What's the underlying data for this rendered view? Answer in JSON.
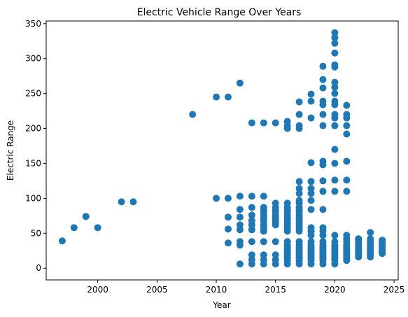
{
  "chart_data": {
    "type": "scatter",
    "title": "Electric Vehicle Range Over Years",
    "xlabel": "Year",
    "ylabel": "Electric Range",
    "xlim": [
      1995.65,
      2025.35
    ],
    "ylim": [
      -16.8,
      353.8
    ],
    "x_ticks": [
      2000,
      2005,
      2010,
      2015,
      2020,
      2025
    ],
    "y_ticks": [
      0,
      50,
      100,
      150,
      200,
      250,
      300,
      350
    ],
    "grid": false,
    "marker_color": "#1f77b4",
    "points": [
      {
        "x": 1997,
        "y": 39
      },
      {
        "x": 1998,
        "y": 58
      },
      {
        "x": 1999,
        "y": 74
      },
      {
        "x": 2000,
        "y": 58
      },
      {
        "x": 2002,
        "y": 95
      },
      {
        "x": 2003,
        "y": 95
      },
      {
        "x": 2008,
        "y": 220
      },
      {
        "x": 2010,
        "y": 100
      },
      {
        "x": 2010,
        "y": 245
      },
      {
        "x": 2011,
        "y": 36
      },
      {
        "x": 2011,
        "y": 56
      },
      {
        "x": 2011,
        "y": 73
      },
      {
        "x": 2011,
        "y": 100
      },
      {
        "x": 2011,
        "y": 245
      },
      {
        "x": 2012,
        "y": 6
      },
      {
        "x": 2012,
        "y": 33
      },
      {
        "x": 2012,
        "y": 38
      },
      {
        "x": 2012,
        "y": 55
      },
      {
        "x": 2012,
        "y": 62
      },
      {
        "x": 2012,
        "y": 73
      },
      {
        "x": 2012,
        "y": 84
      },
      {
        "x": 2012,
        "y": 103
      },
      {
        "x": 2012,
        "y": 265
      },
      {
        "x": 2013,
        "y": 6
      },
      {
        "x": 2013,
        "y": 12
      },
      {
        "x": 2013,
        "y": 19
      },
      {
        "x": 2013,
        "y": 38
      },
      {
        "x": 2013,
        "y": 55
      },
      {
        "x": 2013,
        "y": 62
      },
      {
        "x": 2013,
        "y": 68
      },
      {
        "x": 2013,
        "y": 76
      },
      {
        "x": 2013,
        "y": 87
      },
      {
        "x": 2013,
        "y": 103
      },
      {
        "x": 2013,
        "y": 208
      },
      {
        "x": 2014,
        "y": 6
      },
      {
        "x": 2014,
        "y": 12
      },
      {
        "x": 2014,
        "y": 19
      },
      {
        "x": 2014,
        "y": 38
      },
      {
        "x": 2014,
        "y": 53
      },
      {
        "x": 2014,
        "y": 58
      },
      {
        "x": 2014,
        "y": 62
      },
      {
        "x": 2014,
        "y": 68
      },
      {
        "x": 2014,
        "y": 72
      },
      {
        "x": 2014,
        "y": 76
      },
      {
        "x": 2014,
        "y": 81
      },
      {
        "x": 2014,
        "y": 84
      },
      {
        "x": 2014,
        "y": 87
      },
      {
        "x": 2014,
        "y": 103
      },
      {
        "x": 2014,
        "y": 208
      },
      {
        "x": 2015,
        "y": 6
      },
      {
        "x": 2015,
        "y": 12
      },
      {
        "x": 2015,
        "y": 19
      },
      {
        "x": 2015,
        "y": 38
      },
      {
        "x": 2015,
        "y": 62
      },
      {
        "x": 2015,
        "y": 66
      },
      {
        "x": 2015,
        "y": 70
      },
      {
        "x": 2015,
        "y": 72
      },
      {
        "x": 2015,
        "y": 76
      },
      {
        "x": 2015,
        "y": 81
      },
      {
        "x": 2015,
        "y": 84
      },
      {
        "x": 2015,
        "y": 87
      },
      {
        "x": 2015,
        "y": 93
      },
      {
        "x": 2015,
        "y": 208
      },
      {
        "x": 2016,
        "y": 6
      },
      {
        "x": 2016,
        "y": 11
      },
      {
        "x": 2016,
        "y": 14
      },
      {
        "x": 2016,
        "y": 16
      },
      {
        "x": 2016,
        "y": 19
      },
      {
        "x": 2016,
        "y": 22
      },
      {
        "x": 2016,
        "y": 25
      },
      {
        "x": 2016,
        "y": 27
      },
      {
        "x": 2016,
        "y": 30
      },
      {
        "x": 2016,
        "y": 33
      },
      {
        "x": 2016,
        "y": 38
      },
      {
        "x": 2016,
        "y": 53
      },
      {
        "x": 2016,
        "y": 58
      },
      {
        "x": 2016,
        "y": 62
      },
      {
        "x": 2016,
        "y": 66
      },
      {
        "x": 2016,
        "y": 70
      },
      {
        "x": 2016,
        "y": 72
      },
      {
        "x": 2016,
        "y": 76
      },
      {
        "x": 2016,
        "y": 81
      },
      {
        "x": 2016,
        "y": 84
      },
      {
        "x": 2016,
        "y": 87
      },
      {
        "x": 2016,
        "y": 93
      },
      {
        "x": 2016,
        "y": 200
      },
      {
        "x": 2016,
        "y": 204
      },
      {
        "x": 2016,
        "y": 210
      },
      {
        "x": 2017,
        "y": 6
      },
      {
        "x": 2017,
        "y": 11
      },
      {
        "x": 2017,
        "y": 14
      },
      {
        "x": 2017,
        "y": 16
      },
      {
        "x": 2017,
        "y": 19
      },
      {
        "x": 2017,
        "y": 22
      },
      {
        "x": 2017,
        "y": 25
      },
      {
        "x": 2017,
        "y": 27
      },
      {
        "x": 2017,
        "y": 30
      },
      {
        "x": 2017,
        "y": 33
      },
      {
        "x": 2017,
        "y": 38
      },
      {
        "x": 2017,
        "y": 53
      },
      {
        "x": 2017,
        "y": 58
      },
      {
        "x": 2017,
        "y": 62
      },
      {
        "x": 2017,
        "y": 66
      },
      {
        "x": 2017,
        "y": 70
      },
      {
        "x": 2017,
        "y": 72
      },
      {
        "x": 2017,
        "y": 76
      },
      {
        "x": 2017,
        "y": 81
      },
      {
        "x": 2017,
        "y": 84
      },
      {
        "x": 2017,
        "y": 87
      },
      {
        "x": 2017,
        "y": 93
      },
      {
        "x": 2017,
        "y": 97
      },
      {
        "x": 2017,
        "y": 107
      },
      {
        "x": 2017,
        "y": 114
      },
      {
        "x": 2017,
        "y": 124
      },
      {
        "x": 2017,
        "y": 200
      },
      {
        "x": 2017,
        "y": 204
      },
      {
        "x": 2017,
        "y": 220
      },
      {
        "x": 2017,
        "y": 238
      },
      {
        "x": 2018,
        "y": 6
      },
      {
        "x": 2018,
        "y": 11
      },
      {
        "x": 2018,
        "y": 14
      },
      {
        "x": 2018,
        "y": 16
      },
      {
        "x": 2018,
        "y": 19
      },
      {
        "x": 2018,
        "y": 22
      },
      {
        "x": 2018,
        "y": 25
      },
      {
        "x": 2018,
        "y": 27
      },
      {
        "x": 2018,
        "y": 30
      },
      {
        "x": 2018,
        "y": 33
      },
      {
        "x": 2018,
        "y": 38
      },
      {
        "x": 2018,
        "y": 47
      },
      {
        "x": 2018,
        "y": 53
      },
      {
        "x": 2018,
        "y": 58
      },
      {
        "x": 2018,
        "y": 84
      },
      {
        "x": 2018,
        "y": 97
      },
      {
        "x": 2018,
        "y": 107
      },
      {
        "x": 2018,
        "y": 114
      },
      {
        "x": 2018,
        "y": 124
      },
      {
        "x": 2018,
        "y": 151
      },
      {
        "x": 2018,
        "y": 215
      },
      {
        "x": 2018,
        "y": 239
      },
      {
        "x": 2018,
        "y": 249
      },
      {
        "x": 2019,
        "y": 6
      },
      {
        "x": 2019,
        "y": 11
      },
      {
        "x": 2019,
        "y": 14
      },
      {
        "x": 2019,
        "y": 16
      },
      {
        "x": 2019,
        "y": 19
      },
      {
        "x": 2019,
        "y": 22
      },
      {
        "x": 2019,
        "y": 25
      },
      {
        "x": 2019,
        "y": 27
      },
      {
        "x": 2019,
        "y": 30
      },
      {
        "x": 2019,
        "y": 33
      },
      {
        "x": 2019,
        "y": 38
      },
      {
        "x": 2019,
        "y": 47
      },
      {
        "x": 2019,
        "y": 53
      },
      {
        "x": 2019,
        "y": 58
      },
      {
        "x": 2019,
        "y": 84
      },
      {
        "x": 2019,
        "y": 110
      },
      {
        "x": 2019,
        "y": 125
      },
      {
        "x": 2019,
        "y": 148
      },
      {
        "x": 2019,
        "y": 153
      },
      {
        "x": 2019,
        "y": 204
      },
      {
        "x": 2019,
        "y": 220
      },
      {
        "x": 2019,
        "y": 234
      },
      {
        "x": 2019,
        "y": 239
      },
      {
        "x": 2019,
        "y": 258
      },
      {
        "x": 2019,
        "y": 270
      },
      {
        "x": 2019,
        "y": 289
      },
      {
        "x": 2020,
        "y": 6
      },
      {
        "x": 2020,
        "y": 11
      },
      {
        "x": 2020,
        "y": 14
      },
      {
        "x": 2020,
        "y": 16
      },
      {
        "x": 2020,
        "y": 19
      },
      {
        "x": 2020,
        "y": 22
      },
      {
        "x": 2020,
        "y": 25
      },
      {
        "x": 2020,
        "y": 27
      },
      {
        "x": 2020,
        "y": 30
      },
      {
        "x": 2020,
        "y": 33
      },
      {
        "x": 2020,
        "y": 38
      },
      {
        "x": 2020,
        "y": 47
      },
      {
        "x": 2020,
        "y": 110
      },
      {
        "x": 2020,
        "y": 126
      },
      {
        "x": 2020,
        "y": 150
      },
      {
        "x": 2020,
        "y": 170
      },
      {
        "x": 2020,
        "y": 204
      },
      {
        "x": 2020,
        "y": 215
      },
      {
        "x": 2020,
        "y": 220
      },
      {
        "x": 2020,
        "y": 234
      },
      {
        "x": 2020,
        "y": 239
      },
      {
        "x": 2020,
        "y": 250
      },
      {
        "x": 2020,
        "y": 259
      },
      {
        "x": 2020,
        "y": 266
      },
      {
        "x": 2020,
        "y": 288
      },
      {
        "x": 2020,
        "y": 291
      },
      {
        "x": 2020,
        "y": 308
      },
      {
        "x": 2020,
        "y": 322
      },
      {
        "x": 2020,
        "y": 330
      },
      {
        "x": 2020,
        "y": 337
      },
      {
        "x": 2021,
        "y": 11
      },
      {
        "x": 2021,
        "y": 14
      },
      {
        "x": 2021,
        "y": 16
      },
      {
        "x": 2021,
        "y": 19
      },
      {
        "x": 2021,
        "y": 22
      },
      {
        "x": 2021,
        "y": 25
      },
      {
        "x": 2021,
        "y": 27
      },
      {
        "x": 2021,
        "y": 30
      },
      {
        "x": 2021,
        "y": 33
      },
      {
        "x": 2021,
        "y": 38
      },
      {
        "x": 2021,
        "y": 42
      },
      {
        "x": 2021,
        "y": 47
      },
      {
        "x": 2021,
        "y": 110
      },
      {
        "x": 2021,
        "y": 126
      },
      {
        "x": 2021,
        "y": 153
      },
      {
        "x": 2021,
        "y": 192
      },
      {
        "x": 2021,
        "y": 204
      },
      {
        "x": 2021,
        "y": 215
      },
      {
        "x": 2021,
        "y": 220
      },
      {
        "x": 2021,
        "y": 233
      },
      {
        "x": 2022,
        "y": 16
      },
      {
        "x": 2022,
        "y": 19
      },
      {
        "x": 2022,
        "y": 21
      },
      {
        "x": 2022,
        "y": 23
      },
      {
        "x": 2022,
        "y": 25
      },
      {
        "x": 2022,
        "y": 27
      },
      {
        "x": 2022,
        "y": 30
      },
      {
        "x": 2022,
        "y": 33
      },
      {
        "x": 2022,
        "y": 35
      },
      {
        "x": 2022,
        "y": 38
      },
      {
        "x": 2022,
        "y": 42
      },
      {
        "x": 2023,
        "y": 16
      },
      {
        "x": 2023,
        "y": 19
      },
      {
        "x": 2023,
        "y": 21
      },
      {
        "x": 2023,
        "y": 23
      },
      {
        "x": 2023,
        "y": 25
      },
      {
        "x": 2023,
        "y": 27
      },
      {
        "x": 2023,
        "y": 30
      },
      {
        "x": 2023,
        "y": 33
      },
      {
        "x": 2023,
        "y": 35
      },
      {
        "x": 2023,
        "y": 38
      },
      {
        "x": 2023,
        "y": 42
      },
      {
        "x": 2023,
        "y": 51
      },
      {
        "x": 2024,
        "y": 21
      },
      {
        "x": 2024,
        "y": 23
      },
      {
        "x": 2024,
        "y": 25
      },
      {
        "x": 2024,
        "y": 27
      },
      {
        "x": 2024,
        "y": 30
      },
      {
        "x": 2024,
        "y": 33
      },
      {
        "x": 2024,
        "y": 35
      },
      {
        "x": 2024,
        "y": 38
      },
      {
        "x": 2024,
        "y": 40
      }
    ]
  }
}
